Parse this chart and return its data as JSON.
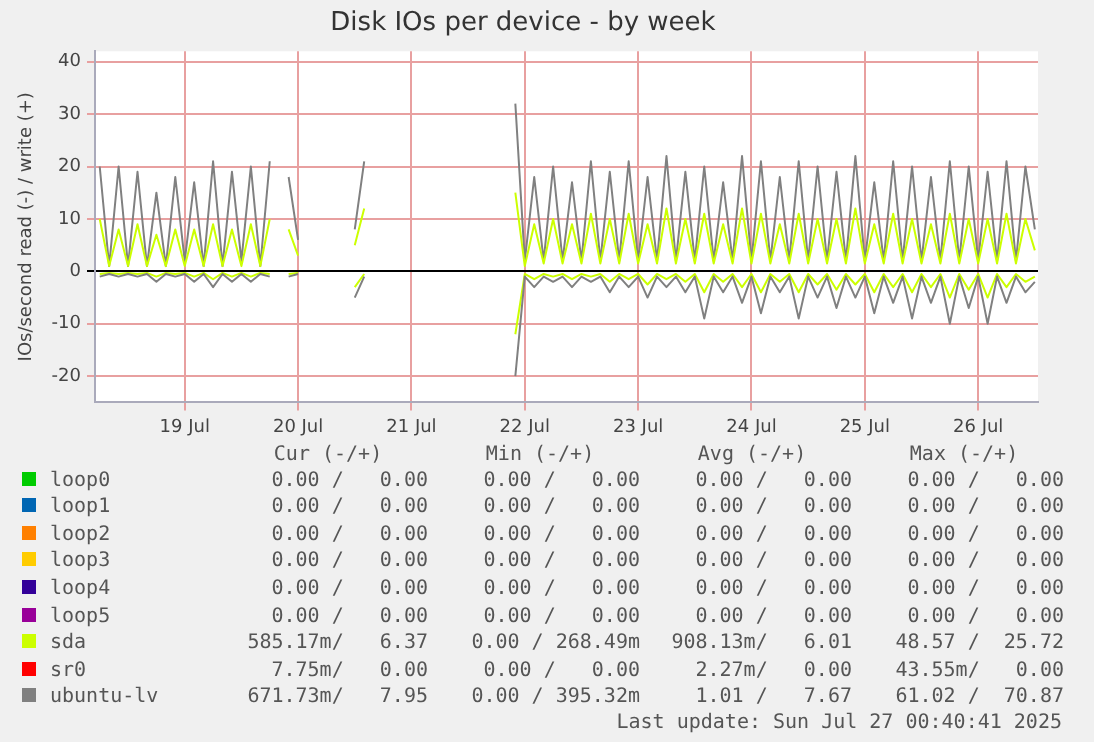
{
  "chart_data": {
    "type": "line",
    "title": "Disk IOs per device - by week",
    "ylabel": "IOs/second read (-) / write (+)",
    "x": [
      "2025-07-18T18:00",
      "2025-07-18T20:00",
      "2025-07-18T22:00",
      "2025-07-19T00:00",
      "2025-07-19T02:00",
      "2025-07-19T04:00",
      "2025-07-19T06:00",
      "2025-07-19T08:00",
      "2025-07-19T10:00",
      "2025-07-19T12:00",
      "2025-07-19T14:00",
      "2025-07-19T16:00",
      "2025-07-19T18:00",
      "2025-07-19T20:00",
      "2025-07-19T22:00",
      "2025-07-20T00:00",
      "2025-07-20T02:00",
      "2025-07-20T04:00",
      "2025-07-20T06:00",
      "2025-07-20T08:00",
      "2025-07-20T10:00",
      "2025-07-20T12:00",
      "2025-07-20T14:00",
      "2025-07-20T16:00",
      "2025-07-20T18:00",
      "2025-07-20T20:00",
      "2025-07-20T22:00",
      "2025-07-21T00:00",
      "2025-07-21T02:00",
      "2025-07-21T04:00",
      "2025-07-21T06:00",
      "2025-07-21T08:00",
      "2025-07-21T10:00",
      "2025-07-21T12:00",
      "2025-07-21T14:00",
      "2025-07-21T16:00",
      "2025-07-21T18:00",
      "2025-07-21T20:00",
      "2025-07-21T22:00",
      "2025-07-22T00:00",
      "2025-07-22T02:00",
      "2025-07-22T04:00",
      "2025-07-22T06:00",
      "2025-07-22T08:00",
      "2025-07-22T10:00",
      "2025-07-22T12:00",
      "2025-07-22T14:00",
      "2025-07-22T16:00",
      "2025-07-22T18:00",
      "2025-07-22T20:00",
      "2025-07-22T22:00",
      "2025-07-23T00:00",
      "2025-07-23T02:00",
      "2025-07-23T04:00",
      "2025-07-23T06:00",
      "2025-07-23T08:00",
      "2025-07-23T10:00",
      "2025-07-23T12:00",
      "2025-07-23T14:00",
      "2025-07-23T16:00",
      "2025-07-23T18:00",
      "2025-07-23T20:00",
      "2025-07-23T22:00",
      "2025-07-24T00:00",
      "2025-07-24T02:00",
      "2025-07-24T04:00",
      "2025-07-24T06:00",
      "2025-07-24T08:00",
      "2025-07-24T10:00",
      "2025-07-24T12:00",
      "2025-07-24T14:00",
      "2025-07-24T16:00",
      "2025-07-24T18:00",
      "2025-07-24T20:00",
      "2025-07-24T22:00",
      "2025-07-25T00:00",
      "2025-07-25T02:00",
      "2025-07-25T04:00",
      "2025-07-25T06:00",
      "2025-07-25T08:00",
      "2025-07-25T10:00",
      "2025-07-25T12:00",
      "2025-07-25T14:00",
      "2025-07-25T16:00",
      "2025-07-25T18:00",
      "2025-07-25T20:00",
      "2025-07-25T22:00",
      "2025-07-26T00:00",
      "2025-07-26T02:00",
      "2025-07-26T04:00",
      "2025-07-26T06:00",
      "2025-07-26T08:00",
      "2025-07-26T10:00",
      "2025-07-26T12:00",
      "2025-07-26T14:00",
      "2025-07-26T16:00",
      "2025-07-26T18:00",
      "2025-07-26T20:00",
      "2025-07-26T22:00",
      "2025-07-27T00:00"
    ],
    "series": [
      {
        "name": "loop0",
        "color": "#00cc00",
        "values": [
          null,
          null,
          null,
          null,
          null,
          null,
          null,
          null,
          null,
          null,
          null,
          null,
          null,
          null,
          null,
          null,
          null,
          null,
          null,
          null,
          null,
          null,
          null,
          null,
          null,
          null,
          null,
          null,
          null,
          null,
          null,
          null,
          null,
          null,
          null,
          null,
          null,
          null,
          null,
          null,
          null,
          null,
          null,
          null,
          null,
          null,
          null,
          null,
          null,
          null,
          null,
          null,
          null,
          null,
          null,
          null,
          null,
          null,
          null,
          null,
          null,
          null,
          null,
          null,
          null,
          null,
          null,
          null,
          null,
          null,
          null,
          null,
          null,
          null,
          null,
          null,
          null,
          null,
          null,
          null,
          null,
          null,
          null,
          null,
          null,
          null,
          null,
          null,
          null,
          null,
          null,
          null,
          null,
          null,
          null,
          null,
          null,
          null,
          null,
          null
        ]
      },
      {
        "name": "loop1",
        "color": "#0066b3",
        "values": [
          null,
          null,
          null,
          null,
          null,
          null,
          null,
          null,
          null,
          null,
          null,
          null,
          null,
          null,
          null,
          null,
          null,
          null,
          null,
          null,
          null,
          null,
          null,
          null,
          null,
          null,
          null,
          null,
          null,
          null,
          null,
          null,
          null,
          null,
          null,
          null,
          null,
          null,
          null,
          null,
          null,
          null,
          null,
          null,
          null,
          null,
          null,
          null,
          null,
          null,
          null,
          null,
          null,
          null,
          null,
          null,
          null,
          null,
          null,
          null,
          null,
          null,
          null,
          null,
          null,
          null,
          null,
          null,
          null,
          null,
          null,
          null,
          null,
          null,
          null,
          null,
          null,
          null,
          null,
          null,
          null,
          null,
          null,
          null,
          null,
          null,
          null,
          null,
          null,
          null,
          null,
          null,
          null,
          null,
          null,
          null,
          null,
          null,
          null,
          null
        ]
      },
      {
        "name": "loop2",
        "color": "#ff8000",
        "values": [
          null,
          null,
          null,
          null,
          null,
          null,
          null,
          null,
          null,
          null,
          null,
          null,
          null,
          null,
          null,
          null,
          null,
          null,
          null,
          null,
          null,
          null,
          null,
          null,
          null,
          null,
          null,
          null,
          null,
          null,
          null,
          null,
          null,
          null,
          null,
          null,
          null,
          null,
          null,
          null,
          null,
          null,
          null,
          null,
          null,
          null,
          null,
          null,
          null,
          null,
          null,
          null,
          null,
          null,
          null,
          null,
          null,
          null,
          null,
          null,
          null,
          null,
          null,
          null,
          null,
          null,
          null,
          null,
          null,
          null,
          null,
          null,
          null,
          null,
          null,
          null,
          null,
          null,
          null,
          null,
          null,
          null,
          null,
          null,
          null,
          null,
          null,
          null,
          null,
          null,
          null,
          null,
          null,
          null,
          null,
          null,
          null,
          null,
          null,
          null
        ]
      },
      {
        "name": "loop3",
        "color": "#ffcc00",
        "values": [
          null,
          null,
          null,
          null,
          null,
          null,
          null,
          null,
          null,
          null,
          null,
          null,
          null,
          null,
          null,
          null,
          null,
          null,
          null,
          null,
          null,
          null,
          null,
          null,
          null,
          null,
          null,
          null,
          null,
          null,
          null,
          null,
          null,
          null,
          null,
          null,
          null,
          null,
          null,
          null,
          null,
          null,
          null,
          null,
          null,
          null,
          null,
          null,
          null,
          null,
          null,
          null,
          null,
          null,
          null,
          null,
          null,
          null,
          null,
          null,
          null,
          null,
          null,
          null,
          null,
          null,
          null,
          null,
          null,
          null,
          null,
          null,
          null,
          null,
          null,
          null,
          null,
          null,
          null,
          null,
          null,
          null,
          null,
          null,
          null,
          null,
          null,
          null,
          null,
          null,
          null,
          null,
          null,
          null,
          null,
          null,
          null,
          null,
          null,
          null
        ]
      },
      {
        "name": "loop4",
        "color": "#330099",
        "values": [
          null,
          null,
          null,
          null,
          null,
          null,
          null,
          null,
          null,
          null,
          null,
          null,
          null,
          null,
          null,
          null,
          null,
          null,
          null,
          null,
          null,
          null,
          null,
          null,
          null,
          null,
          null,
          null,
          null,
          null,
          null,
          null,
          null,
          null,
          null,
          null,
          null,
          null,
          null,
          null,
          null,
          null,
          null,
          null,
          null,
          null,
          null,
          null,
          null,
          null,
          null,
          null,
          null,
          null,
          null,
          null,
          null,
          null,
          null,
          null,
          null,
          null,
          null,
          null,
          null,
          null,
          null,
          null,
          null,
          null,
          null,
          null,
          null,
          null,
          null,
          null,
          null,
          null,
          null,
          null,
          null,
          null,
          null,
          null,
          null,
          null,
          null,
          null,
          null,
          null,
          null,
          null,
          null,
          null,
          null,
          null,
          null,
          null,
          null,
          null
        ]
      },
      {
        "name": "loop5",
        "color": "#990099",
        "values": [
          null,
          null,
          null,
          null,
          null,
          null,
          null,
          null,
          null,
          null,
          null,
          null,
          null,
          null,
          null,
          null,
          null,
          null,
          null,
          null,
          null,
          null,
          null,
          null,
          null,
          null,
          null,
          null,
          null,
          null,
          null,
          null,
          null,
          null,
          null,
          null,
          null,
          null,
          null,
          null,
          null,
          null,
          null,
          null,
          null,
          null,
          null,
          null,
          null,
          null,
          null,
          null,
          null,
          null,
          null,
          null,
          null,
          null,
          null,
          null,
          null,
          null,
          null,
          null,
          null,
          null,
          null,
          null,
          null,
          null,
          null,
          null,
          null,
          null,
          null,
          null,
          null,
          null,
          null,
          null,
          null,
          null,
          null,
          null,
          null,
          null,
          null,
          null,
          null,
          null,
          null,
          null,
          null,
          null,
          null,
          null,
          null,
          null,
          null,
          null
        ]
      },
      {
        "name": "sda",
        "color": "#ccff00",
        "values": [
          10,
          1,
          8,
          1,
          9,
          1,
          7,
          1,
          8,
          1,
          8,
          1,
          9,
          1,
          8,
          1,
          9,
          1,
          10,
          null,
          8,
          3,
          null,
          null,
          null,
          null,
          null,
          5,
          12,
          null,
          null,
          null,
          null,
          null,
          null,
          null,
          null,
          null,
          null,
          null,
          null,
          null,
          null,
          null,
          15,
          1,
          9,
          1.5,
          10,
          1.5,
          9,
          1.5,
          11,
          1.5,
          10,
          1.5,
          11,
          1.5,
          9,
          1.5,
          12,
          1.5,
          10,
          1.5,
          11,
          1.5,
          9,
          1.5,
          12,
          1.5,
          11,
          1.5,
          9,
          1.5,
          11,
          1.5,
          10,
          1.5,
          10,
          1.5,
          12,
          1.5,
          9,
          1.5,
          11,
          1.5,
          10,
          1.5,
          9,
          1.5,
          11,
          1.5,
          10,
          1.5,
          10,
          1.5,
          11,
          1.5,
          10,
          4
        ]
      },
      {
        "name": "sr0",
        "color": "#ff0000",
        "values": [
          null,
          null,
          null,
          null,
          null,
          null,
          null,
          null,
          null,
          null,
          null,
          null,
          null,
          null,
          null,
          null,
          null,
          null,
          null,
          null,
          null,
          null,
          null,
          null,
          null,
          null,
          null,
          null,
          null,
          null,
          null,
          null,
          null,
          null,
          null,
          null,
          null,
          null,
          null,
          null,
          null,
          null,
          null,
          null,
          null,
          null,
          null,
          null,
          null,
          null,
          null,
          null,
          null,
          null,
          null,
          null,
          null,
          null,
          null,
          null,
          null,
          null,
          null,
          null,
          null,
          null,
          null,
          null,
          null,
          null,
          null,
          null,
          null,
          null,
          null,
          null,
          null,
          null,
          null,
          null,
          null,
          null,
          null,
          null,
          null,
          null,
          null,
          null,
          null,
          null,
          null,
          null,
          null,
          null,
          null,
          null,
          null,
          null,
          null,
          null
        ]
      },
      {
        "name": "ubuntu-lv",
        "color": "#808080",
        "values": [
          20,
          1,
          20,
          1,
          19,
          1,
          15,
          1,
          18,
          2,
          17,
          1,
          21,
          1,
          19,
          2,
          20,
          1,
          21,
          null,
          18,
          6,
          null,
          null,
          null,
          null,
          null,
          8,
          21,
          null,
          null,
          null,
          null,
          null,
          null,
          null,
          null,
          null,
          null,
          null,
          null,
          null,
          null,
          null,
          32,
          2,
          18,
          2,
          20,
          2,
          17,
          2,
          21,
          2,
          19,
          2,
          21,
          2,
          18,
          2,
          22,
          2,
          19,
          2,
          20,
          2,
          17,
          2,
          22,
          2,
          21,
          2,
          18,
          2,
          21,
          2,
          20,
          2,
          19,
          2,
          22,
          2,
          17,
          2,
          21,
          2,
          20,
          2,
          18,
          2,
          21,
          2,
          20,
          2,
          19,
          2,
          21,
          2,
          20,
          8
        ]
      },
      {
        "color": "#808080",
        "values": [
          -1,
          -0.5,
          -1,
          -0.5,
          -1,
          -0.5,
          -2,
          -0.5,
          -1,
          -0.5,
          -2,
          -0.5,
          -3,
          -0.5,
          -2,
          -0.5,
          -2,
          -0.5,
          -1,
          null,
          -1,
          -0.5,
          null,
          null,
          null,
          null,
          null,
          -5,
          -1,
          null,
          null,
          null,
          null,
          null,
          null,
          null,
          null,
          null,
          null,
          null,
          null,
          null,
          null,
          null,
          -20,
          -1,
          -3,
          -1,
          -2,
          -1,
          -3,
          -1,
          -2,
          -1,
          -4,
          -1,
          -3,
          -1,
          -5,
          -1,
          -3,
          -1,
          -4,
          -1,
          -9,
          -1,
          -4,
          -1,
          -6,
          -1,
          -8,
          -1,
          -4,
          -1,
          -9,
          -1,
          -5,
          -1,
          -7,
          -1,
          -5,
          -1,
          -8,
          -1,
          -6,
          -1,
          -9,
          -1,
          -6,
          -1,
          -10,
          -1,
          -7,
          -1,
          -10,
          -1,
          -6,
          -1,
          -4,
          -2
        ]
      },
      {
        "color": "#ccff00",
        "values": [
          -0.5,
          -0.3,
          -0.5,
          -0.3,
          -0.5,
          -0.3,
          -1,
          -0.3,
          -0.5,
          -0.3,
          -1,
          -0.3,
          -1.5,
          -0.3,
          -1,
          -0.3,
          -1,
          -0.3,
          -0.5,
          null,
          -0.5,
          -0.3,
          null,
          null,
          null,
          null,
          null,
          -3,
          -0.5,
          null,
          null,
          null,
          null,
          null,
          null,
          null,
          null,
          null,
          null,
          null,
          null,
          null,
          null,
          null,
          -12,
          -0.5,
          -1.5,
          -0.5,
          -1,
          -0.5,
          -1.5,
          -0.5,
          -1,
          -0.5,
          -2,
          -0.5,
          -1.5,
          -0.5,
          -2.5,
          -0.5,
          -1.5,
          -0.5,
          -2,
          -0.5,
          -4,
          -0.5,
          -2,
          -0.5,
          -3,
          -0.5,
          -4,
          -0.5,
          -2,
          -0.5,
          -4,
          -0.5,
          -2.5,
          -0.5,
          -3.5,
          -0.5,
          -2.5,
          -0.5,
          -4,
          -0.5,
          -3,
          -0.5,
          -4,
          -0.5,
          -3,
          -0.5,
          -5,
          -0.5,
          -3.5,
          -0.5,
          -5,
          -0.5,
          -3,
          -0.5,
          -2,
          -1
        ]
      }
    ],
    "xlim": [
      "2025-07-18T17:00",
      "2025-07-27T00:40"
    ],
    "xticks": [
      {
        "value": "2025-07-19T12:00",
        "label": "19 Jul"
      },
      {
        "value": "2025-07-20T12:00",
        "label": "20 Jul"
      },
      {
        "value": "2025-07-21T12:00",
        "label": "21 Jul"
      },
      {
        "value": "2025-07-22T12:00",
        "label": "22 Jul"
      },
      {
        "value": "2025-07-23T12:00",
        "label": "23 Jul"
      },
      {
        "value": "2025-07-24T12:00",
        "label": "24 Jul"
      },
      {
        "value": "2025-07-25T12:00",
        "label": "25 Jul"
      },
      {
        "value": "2025-07-26T12:00",
        "label": "26 Jul"
      }
    ],
    "ylim": [
      -25,
      42
    ],
    "yticks": [
      -20,
      -10,
      0,
      10,
      20,
      30,
      40
    ],
    "grid": true,
    "legend": "bottom",
    "annotations": [
      "Cur (-/+)",
      "Min (-/+)",
      "Avg (-/+)",
      "Max (-/+)",
      "0.00 /   0.00",
      "0.00 /   0.00",
      "0.00 /   0.00",
      "0.00 /   0.00",
      "0.00 /   0.00",
      "0.00 /   0.00",
      "0.00 /   0.00",
      "0.00 /   0.00",
      "0.00 /   0.00",
      "0.00 /   0.00",
      "0.00 /   0.00",
      "0.00 /   0.00",
      "0.00 /   0.00",
      "0.00 /   0.00",
      "0.00 /   0.00",
      "0.00 /   0.00",
      "0.00 /   0.00",
      "0.00 /   0.00",
      "0.00 /   0.00",
      "0.00 /   0.00",
      "0.00 /   0.00",
      "0.00 /   0.00",
      "0.00 /   0.00",
      "0.00 /   0.00",
      "585.17m/   6.37",
      "0.00 / 268.49m",
      "908.13m/   6.01",
      "48.57 /  25.72",
      "7.75m/   0.00",
      "0.00 /   0.00",
      "2.27m/   0.00",
      "43.55m/   0.00",
      "671.73m/   7.95",
      "0.00 / 395.32m",
      "1.01 /   7.67",
      "61.02 /  70.87",
      "Last update: Sun Jul 27 00:40:41 2025"
    ]
  }
}
